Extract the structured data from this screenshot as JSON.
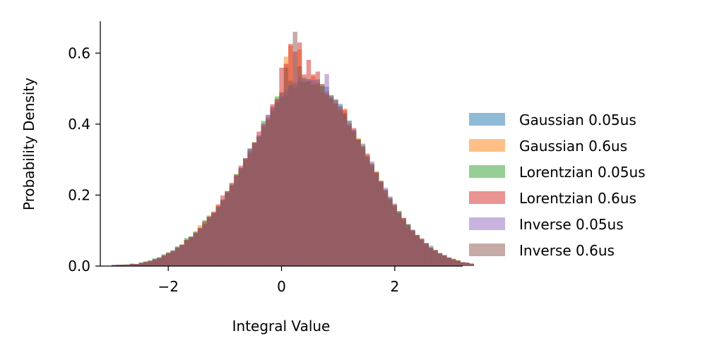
{
  "chart_data": {
    "type": "histogram",
    "xlabel": "Integral Value",
    "ylabel": "Probability Density",
    "xlim": [
      -3.2,
      3.2
    ],
    "ylim": [
      0,
      0.69
    ],
    "x_ticks": [
      -2,
      0,
      2
    ],
    "x_tick_labels": [
      "−2",
      "0",
      "2"
    ],
    "y_ticks": [
      0.0,
      0.2,
      0.4,
      0.6
    ],
    "y_tick_labels": [
      "0.0",
      "0.2",
      "0.4",
      "0.6"
    ],
    "bin_start": -3.0,
    "bin_width": 0.08,
    "grid": false,
    "legend_position": "right",
    "series": [
      {
        "name": "Gaussian 0.05us",
        "color": "#1f77b4",
        "values": [
          0.004,
          0.002,
          0.004,
          0.003,
          0.006,
          0.004,
          0.009,
          0.012,
          0.014,
          0.021,
          0.022,
          0.033,
          0.034,
          0.042,
          0.055,
          0.06,
          0.073,
          0.083,
          0.085,
          0.1,
          0.12,
          0.131,
          0.149,
          0.156,
          0.181,
          0.205,
          0.228,
          0.231,
          0.266,
          0.29,
          0.322,
          0.337,
          0.366,
          0.386,
          0.426,
          0.432,
          0.464,
          0.473,
          0.49,
          0.509,
          0.502,
          0.519,
          0.521,
          0.527,
          0.514,
          0.526,
          0.508,
          0.505,
          0.482,
          0.468,
          0.457,
          0.429,
          0.401,
          0.381,
          0.356,
          0.345,
          0.304,
          0.286,
          0.261,
          0.235,
          0.203,
          0.196,
          0.162,
          0.155,
          0.131,
          0.116,
          0.095,
          0.088,
          0.074,
          0.065,
          0.057,
          0.045,
          0.037,
          0.029,
          0.024,
          0.017,
          0.014,
          0.011,
          0.008,
          0.005
        ]
      },
      {
        "name": "Gaussian 0.6us",
        "color": "#ff7f0e",
        "values": [
          0.002,
          0.002,
          0.004,
          0.004,
          0.003,
          0.006,
          0.008,
          0.009,
          0.013,
          0.016,
          0.021,
          0.027,
          0.037,
          0.037,
          0.049,
          0.06,
          0.069,
          0.08,
          0.091,
          0.115,
          0.113,
          0.143,
          0.154,
          0.17,
          0.185,
          0.212,
          0.22,
          0.259,
          0.276,
          0.3,
          0.317,
          0.349,
          0.362,
          0.392,
          0.423,
          0.45,
          0.472,
          0.488,
          0.59,
          0.621,
          0.512,
          0.61,
          0.527,
          0.522,
          0.535,
          0.51,
          0.512,
          0.479,
          0.48,
          0.47,
          0.443,
          0.444,
          0.396,
          0.378,
          0.361,
          0.342,
          0.309,
          0.286,
          0.264,
          0.241,
          0.206,
          0.189,
          0.17,
          0.155,
          0.134,
          0.117,
          0.1,
          0.086,
          0.077,
          0.063,
          0.051,
          0.046,
          0.036,
          0.03,
          0.023,
          0.021,
          0.017,
          0.01,
          0.008,
          0.007
        ]
      },
      {
        "name": "Lorentzian 0.05us",
        "color": "#2ca02c",
        "values": [
          0.002,
          0.002,
          0.004,
          0.005,
          0.007,
          0.006,
          0.01,
          0.013,
          0.016,
          0.021,
          0.024,
          0.029,
          0.039,
          0.039,
          0.054,
          0.059,
          0.079,
          0.08,
          0.098,
          0.107,
          0.129,
          0.14,
          0.146,
          0.165,
          0.185,
          0.21,
          0.231,
          0.259,
          0.275,
          0.302,
          0.327,
          0.346,
          0.364,
          0.409,
          0.41,
          0.437,
          0.478,
          0.478,
          0.479,
          0.51,
          0.503,
          0.52,
          0.531,
          0.522,
          0.524,
          0.51,
          0.506,
          0.484,
          0.478,
          0.466,
          0.437,
          0.423,
          0.41,
          0.383,
          0.357,
          0.335,
          0.307,
          0.285,
          0.26,
          0.239,
          0.216,
          0.186,
          0.169,
          0.153,
          0.127,
          0.119,
          0.102,
          0.085,
          0.074,
          0.064,
          0.051,
          0.042,
          0.035,
          0.03,
          0.023,
          0.018,
          0.016,
          0.009,
          0.009,
          0.007
        ]
      },
      {
        "name": "Lorentzian 0.6us",
        "color": "#d62728",
        "values": [
          0.001,
          0.004,
          0.004,
          0.003,
          0.006,
          0.006,
          0.008,
          0.012,
          0.013,
          0.018,
          0.023,
          0.028,
          0.037,
          0.042,
          0.051,
          0.061,
          0.074,
          0.082,
          0.094,
          0.108,
          0.126,
          0.137,
          0.152,
          0.174,
          0.199,
          0.21,
          0.235,
          0.255,
          0.283,
          0.304,
          0.317,
          0.348,
          0.379,
          0.4,
          0.417,
          0.456,
          0.47,
          0.559,
          0.57,
          0.626,
          0.604,
          0.63,
          0.54,
          0.581,
          0.54,
          0.548,
          0.489,
          0.492,
          0.471,
          0.458,
          0.44,
          0.44,
          0.401,
          0.389,
          0.357,
          0.33,
          0.317,
          0.28,
          0.265,
          0.238,
          0.212,
          0.188,
          0.173,
          0.149,
          0.136,
          0.112,
          0.099,
          0.085,
          0.074,
          0.064,
          0.052,
          0.044,
          0.034,
          0.03,
          0.024,
          0.02,
          0.014,
          0.011,
          0.008,
          0.006
        ]
      },
      {
        "name": "Inverse 0.05us",
        "color": "#9467bd",
        "values": [
          0.003,
          0.004,
          0.004,
          0.004,
          0.004,
          0.005,
          0.01,
          0.009,
          0.015,
          0.018,
          0.022,
          0.026,
          0.032,
          0.044,
          0.048,
          0.059,
          0.067,
          0.082,
          0.087,
          0.105,
          0.114,
          0.139,
          0.148,
          0.166,
          0.186,
          0.211,
          0.224,
          0.256,
          0.278,
          0.294,
          0.332,
          0.345,
          0.37,
          0.402,
          0.426,
          0.449,
          0.466,
          0.479,
          0.497,
          0.509,
          0.517,
          0.533,
          0.523,
          0.526,
          0.523,
          0.508,
          0.507,
          0.541,
          0.48,
          0.469,
          0.451,
          0.419,
          0.409,
          0.385,
          0.351,
          0.335,
          0.304,
          0.295,
          0.256,
          0.24,
          0.221,
          0.19,
          0.171,
          0.148,
          0.128,
          0.117,
          0.102,
          0.087,
          0.076,
          0.062,
          0.051,
          0.042,
          0.036,
          0.031,
          0.022,
          0.018,
          0.013,
          0.011,
          0.01,
          0.006
        ]
      },
      {
        "name": "Inverse 0.6us",
        "color": "#8c564b",
        "values": [
          0.002,
          0.004,
          0.004,
          0.003,
          0.006,
          0.005,
          0.008,
          0.009,
          0.015,
          0.019,
          0.025,
          0.031,
          0.036,
          0.044,
          0.05,
          0.059,
          0.073,
          0.083,
          0.095,
          0.104,
          0.117,
          0.139,
          0.15,
          0.168,
          0.188,
          0.206,
          0.225,
          0.255,
          0.276,
          0.304,
          0.33,
          0.349,
          0.365,
          0.396,
          0.413,
          0.445,
          0.461,
          0.49,
          0.559,
          0.522,
          0.66,
          0.563,
          0.517,
          0.52,
          0.51,
          0.516,
          0.513,
          0.485,
          0.473,
          0.457,
          0.45,
          0.432,
          0.395,
          0.381,
          0.357,
          0.338,
          0.312,
          0.29,
          0.266,
          0.236,
          0.215,
          0.193,
          0.176,
          0.15,
          0.135,
          0.115,
          0.101,
          0.088,
          0.078,
          0.064,
          0.052,
          0.045,
          0.036,
          0.031,
          0.024,
          0.019,
          0.016,
          0.011,
          0.01,
          0.007
        ]
      }
    ]
  }
}
